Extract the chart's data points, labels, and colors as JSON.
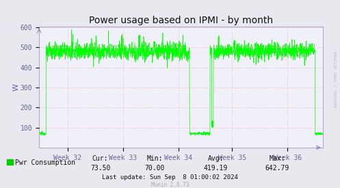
{
  "title": "Power usage based on IPMI - by month",
  "ylabel": "W",
  "yticks": [
    100,
    200,
    300,
    400,
    500,
    600
  ],
  "ymax": 600,
  "ymin": 0,
  "line_color": "#00ff00",
  "bg_color": "#e8e8ee",
  "plot_bg_color": "#f0f0f8",
  "grid_color": "#ffaaaa",
  "title_fontsize": 10,
  "legend_label": "Pwr Consumption",
  "legend_color": "#00cc00",
  "cur_label": "Cur:",
  "min_label": "Min:",
  "avg_label": "Avg:",
  "max_label": "Max:",
  "cur_val": "73.50",
  "min_val": "70.00",
  "avg_val": "419.19",
  "max_val": "642.79",
  "last_update": "Last update: Sun Sep  8 01:00:02 2024",
  "munin_version": "Munin 2.0.73",
  "watermark": "RRDTOOL / TOBI OETIKER",
  "xtick_labels": [
    "Week 32",
    "Week 33",
    "Week 34",
    "Week 35",
    "Week 36"
  ]
}
